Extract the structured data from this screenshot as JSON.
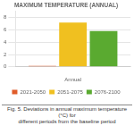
{
  "chart_data": {
    "type": "bar",
    "title": "MAXIMUM TEMPERATURE (ANNUAL)",
    "caption": "Fig. 5. Deviations in annual maximum temperature (°C) for\ndifferent periods from the baseline period",
    "categories": [
      "Annual"
    ],
    "series": [
      {
        "name": "2021-2050",
        "color": "#e05c2a",
        "values": [
          0.15
        ]
      },
      {
        "name": "2051-2075",
        "color": "#f0c020",
        "values": [
          7.2
        ]
      },
      {
        "name": "2076-2100",
        "color": "#5aaa30",
        "values": [
          5.8
        ]
      }
    ],
    "ylim": [
      0,
      9
    ],
    "yticks": [
      0,
      2,
      4,
      6,
      8
    ],
    "grid": true,
    "legend": "bottom"
  }
}
